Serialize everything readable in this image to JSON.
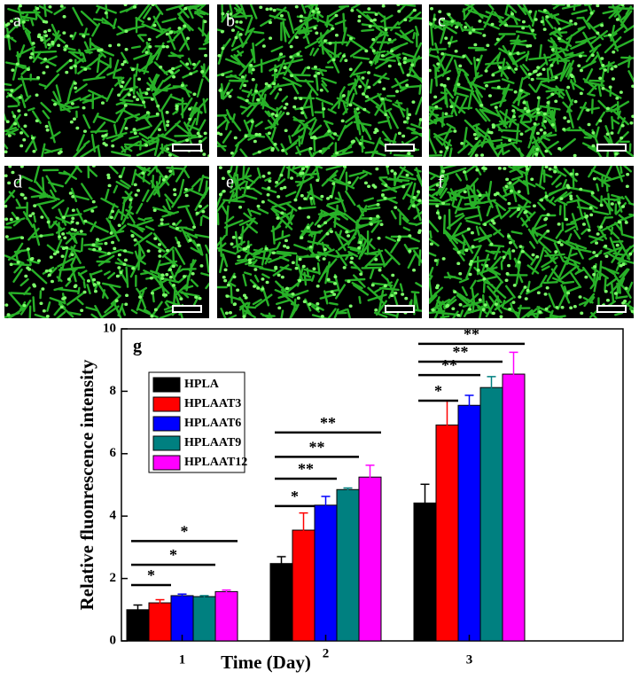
{
  "panels": [
    "a",
    "b",
    "c",
    "d",
    "e",
    "f"
  ],
  "chart_data": {
    "type": "bar",
    "panel_label": "g",
    "categories": [
      "1",
      "2",
      "3"
    ],
    "series": [
      {
        "name": "HPLA",
        "color": "#000000",
        "values": [
          1.0,
          2.48,
          4.42
        ],
        "errors": [
          0.15,
          0.22,
          0.6
        ]
      },
      {
        "name": "HPLAAT3",
        "color": "#ff0000",
        "values": [
          1.22,
          3.55,
          6.92
        ],
        "errors": [
          0.1,
          0.55,
          0.78
        ]
      },
      {
        "name": "HPLAAT6",
        "color": "#0000ff",
        "values": [
          1.45,
          4.35,
          7.55
        ],
        "errors": [
          0.05,
          0.28,
          0.32
        ]
      },
      {
        "name": "HPLAAT9",
        "color": "#008080",
        "values": [
          1.42,
          4.85,
          8.12
        ],
        "errors": [
          0.03,
          0.05,
          0.35
        ]
      },
      {
        "name": "HPLAAT12",
        "color": "#ff00ff",
        "values": [
          1.58,
          5.25,
          8.55
        ],
        "errors": [
          0.05,
          0.38,
          0.7
        ]
      }
    ],
    "ylim": [
      0,
      10
    ],
    "yticks": [
      0,
      2,
      4,
      6,
      8,
      10
    ],
    "xlabel": "Time (Day)",
    "ylabel": "Relative fluonrescence intensity",
    "annotations": [
      "*",
      "*",
      "*",
      "*",
      "**",
      "**",
      "**",
      "*",
      "**",
      "**",
      "**"
    ]
  }
}
